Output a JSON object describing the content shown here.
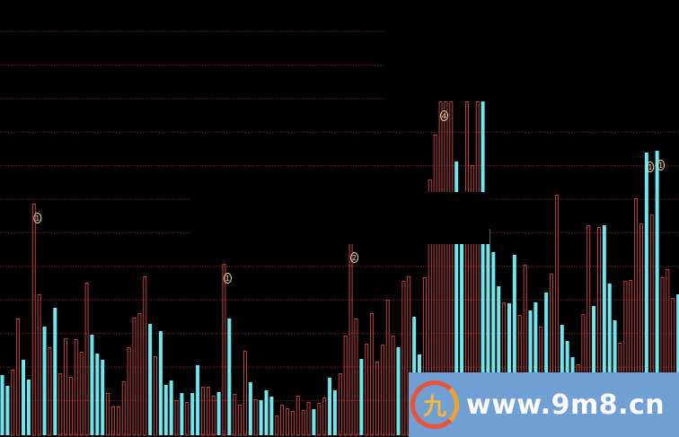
{
  "chart_data": {
    "type": "bar",
    "title": "",
    "xlabel": "",
    "ylabel": "",
    "grid": true,
    "ylim": [
      0,
      372
    ],
    "colors": {
      "up": "#c0413f",
      "down": "#6fe6ee",
      "grid": "#5c1c1c",
      "annotation": "#f2d9a0",
      "background": "#000000"
    },
    "bars": [
      [
        67,
        "d"
      ],
      [
        55,
        "d"
      ],
      [
        73,
        "u"
      ],
      [
        130,
        "u"
      ],
      [
        84,
        "d"
      ],
      [
        62,
        "d"
      ],
      [
        258,
        "u"
      ],
      [
        157,
        "u"
      ],
      [
        121,
        "d"
      ],
      [
        98,
        "u"
      ],
      [
        142,
        "d"
      ],
      [
        69,
        "u"
      ],
      [
        108,
        "u"
      ],
      [
        65,
        "u"
      ],
      [
        107,
        "u"
      ],
      [
        93,
        "u"
      ],
      [
        170,
        "u"
      ],
      [
        112,
        "d"
      ],
      [
        91,
        "d"
      ],
      [
        84,
        "d"
      ],
      [
        47,
        "u"
      ],
      [
        32,
        "u"
      ],
      [
        32,
        "u"
      ],
      [
        60,
        "u"
      ],
      [
        98,
        "u"
      ],
      [
        131,
        "u"
      ],
      [
        136,
        "u"
      ],
      [
        177,
        "u"
      ],
      [
        124,
        "d"
      ],
      [
        88,
        "u"
      ],
      [
        116,
        "d"
      ],
      [
        56,
        "d"
      ],
      [
        61,
        "d"
      ],
      [
        39,
        "u"
      ],
      [
        47,
        "d"
      ],
      [
        37,
        "u"
      ],
      [
        47,
        "d"
      ],
      [
        78,
        "d"
      ],
      [
        54,
        "u"
      ],
      [
        54,
        "u"
      ],
      [
        44,
        "u"
      ],
      [
        48,
        "d"
      ],
      [
        191,
        "u"
      ],
      [
        130,
        "d"
      ],
      [
        46,
        "u"
      ],
      [
        34,
        "u"
      ],
      [
        94,
        "u"
      ],
      [
        59,
        "d"
      ],
      [
        40,
        "u"
      ],
      [
        39,
        "d"
      ],
      [
        50,
        "d"
      ],
      [
        43,
        "d"
      ],
      [
        22,
        "u"
      ],
      [
        34,
        "u"
      ],
      [
        30,
        "u"
      ],
      [
        27,
        "u"
      ],
      [
        44,
        "u"
      ],
      [
        28,
        "u"
      ],
      [
        37,
        "u"
      ],
      [
        29,
        "d"
      ],
      [
        36,
        "u"
      ],
      [
        42,
        "u"
      ],
      [
        64,
        "d"
      ],
      [
        50,
        "d"
      ],
      [
        69,
        "u"
      ],
      [
        111,
        "u"
      ],
      [
        214,
        "u"
      ],
      [
        130,
        "u"
      ],
      [
        85,
        "d"
      ],
      [
        102,
        "u"
      ],
      [
        136,
        "u"
      ],
      [
        82,
        "u"
      ],
      [
        101,
        "u"
      ],
      [
        151,
        "u"
      ],
      [
        111,
        "u"
      ],
      [
        98,
        "d"
      ],
      [
        172,
        "u"
      ],
      [
        177,
        "u"
      ],
      [
        132,
        "d"
      ],
      [
        90,
        "d"
      ],
      [
        176,
        "u"
      ],
      [
        285,
        "u"
      ],
      [
        335,
        "u"
      ],
      [
        372,
        "u"
      ],
      [
        372,
        "u"
      ],
      [
        372,
        "u"
      ],
      [
        305,
        "d"
      ],
      [
        230,
        "d"
      ],
      [
        372,
        "u"
      ],
      [
        301,
        "u"
      ],
      [
        372,
        "u"
      ],
      [
        372,
        "d"
      ],
      [
        230,
        "d"
      ],
      [
        204,
        "d"
      ],
      [
        166,
        "d"
      ],
      [
        148,
        "u"
      ],
      [
        147,
        "d"
      ],
      [
        201,
        "d"
      ],
      [
        134,
        "u"
      ],
      [
        190,
        "u"
      ],
      [
        139,
        "d"
      ],
      [
        148,
        "d"
      ],
      [
        121,
        "u"
      ],
      [
        159,
        "d"
      ],
      [
        180,
        "u"
      ],
      [
        268,
        "u"
      ],
      [
        123,
        "d"
      ],
      [
        105,
        "d"
      ],
      [
        87,
        "d"
      ],
      [
        79,
        "u"
      ],
      [
        135,
        "u"
      ],
      [
        234,
        "u"
      ],
      [
        144,
        "d"
      ],
      [
        232,
        "u"
      ],
      [
        234,
        "d"
      ],
      [
        169,
        "d"
      ],
      [
        128,
        "d"
      ],
      [
        103,
        "u"
      ],
      [
        172,
        "u"
      ],
      [
        173,
        "u"
      ],
      [
        264,
        "u"
      ],
      [
        236,
        "u"
      ],
      [
        315,
        "d"
      ],
      [
        246,
        "u"
      ],
      [
        317,
        "d"
      ],
      [
        176,
        "u"
      ],
      [
        185,
        "u"
      ],
      [
        153,
        "u"
      ],
      [
        157,
        "d"
      ]
    ],
    "annotations": [
      {
        "bar": 6,
        "label": "1"
      },
      {
        "bar": 42,
        "label": "1"
      },
      {
        "bar": 66,
        "label": "2"
      },
      {
        "bar": 83,
        "label": "4"
      },
      {
        "bar": 122,
        "label": "1"
      },
      {
        "bar": 124,
        "label": "1"
      }
    ]
  },
  "watermark": {
    "logo_glyph": "九",
    "text": "www.9m8.cn"
  }
}
